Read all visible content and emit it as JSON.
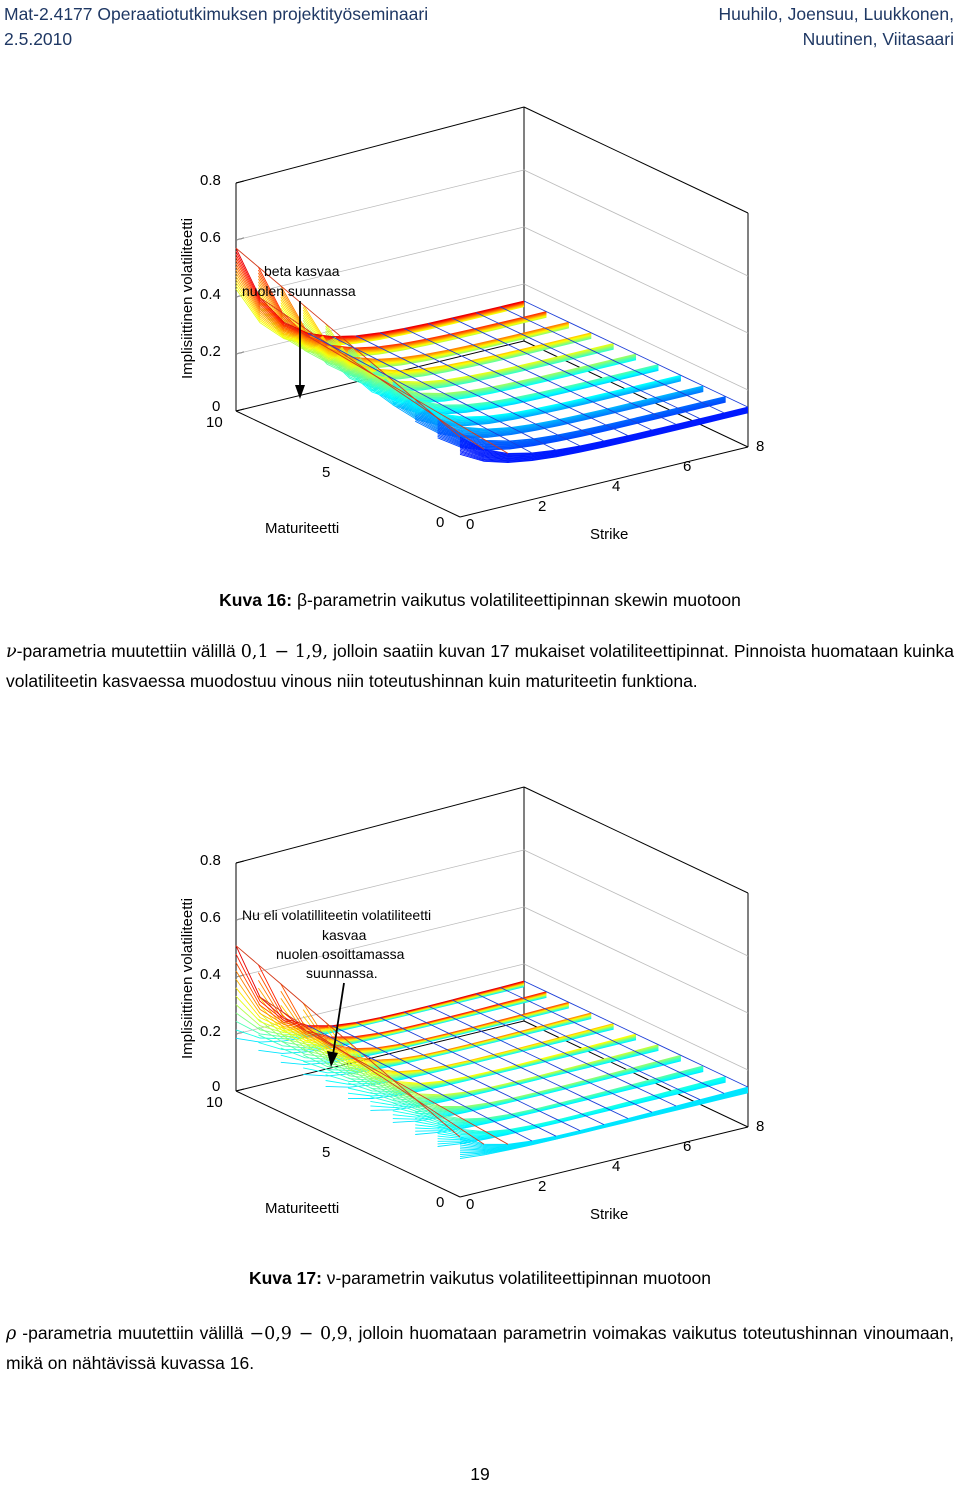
{
  "header": {
    "left_line1": "Mat-2.4177 Operaatiotutkimuksen projektityöseminaari",
    "left_line2": "2.5.2010",
    "right_line1": "Huuhilo, Joensuu, Luukkonen,",
    "right_line2": "Nuutinen, Viitasaari"
  },
  "figure1": {
    "zlabel": "Implisiittinen volatiliteetti",
    "xlabel": "Strike",
    "ylabel": "Maturiteetti",
    "z_ticks": [
      "0.8",
      "0.6",
      "0.4",
      "0.2",
      "0"
    ],
    "x_ticks": [
      "0",
      "2",
      "4",
      "6",
      "8"
    ],
    "y_ticks": [
      "10",
      "5",
      "0"
    ],
    "annotation": [
      "beta kasvaa",
      "nuolen suunnassa"
    ],
    "caption_label": "Kuva 16:",
    "caption_text": " β-parametrin vaikutus volatiliteettipinnan skewin muotoon"
  },
  "paragraph1": {
    "symbol": "ν",
    "text_a": "-parametria muutettiin välillä ",
    "range": "0,1 − 1,9,",
    "text_b": " jolloin saatiin kuvan 17 mukaiset volatiliteettipinnat. Pinnoista huomataan kuinka volatiliteetin kasvaessa muodostuu vinous niin toteutushinnan kuin maturiteetin funktiona."
  },
  "figure2": {
    "zlabel": "Implisiittinen volatiliteetti",
    "xlabel": "Strike",
    "ylabel": "Maturiteetti",
    "z_ticks": [
      "0.8",
      "0.6",
      "0.4",
      "0.2",
      "0"
    ],
    "x_ticks": [
      "0",
      "2",
      "4",
      "6",
      "8"
    ],
    "y_ticks": [
      "10",
      "5",
      "0"
    ],
    "annotation": [
      "Nu eli volatilliteetin volatiliteetti",
      "kasvaa",
      "nuolen osoittamassa",
      "suunnassa."
    ],
    "caption_label": "Kuva 17:",
    "caption_text": " ν-parametrin vaikutus volatiliteettipinnan muotoon"
  },
  "paragraph2": {
    "symbol": "ρ",
    "text_a": " -parametria muutettiin välillä ",
    "range": "−0,9 − 0,9",
    "text_b": ", jolloin huomataan parametrin voimakas vaikutus toteutushinnan vinoumaan, mikä on nähtävissä kuvassa 16."
  },
  "page_number": "19"
}
